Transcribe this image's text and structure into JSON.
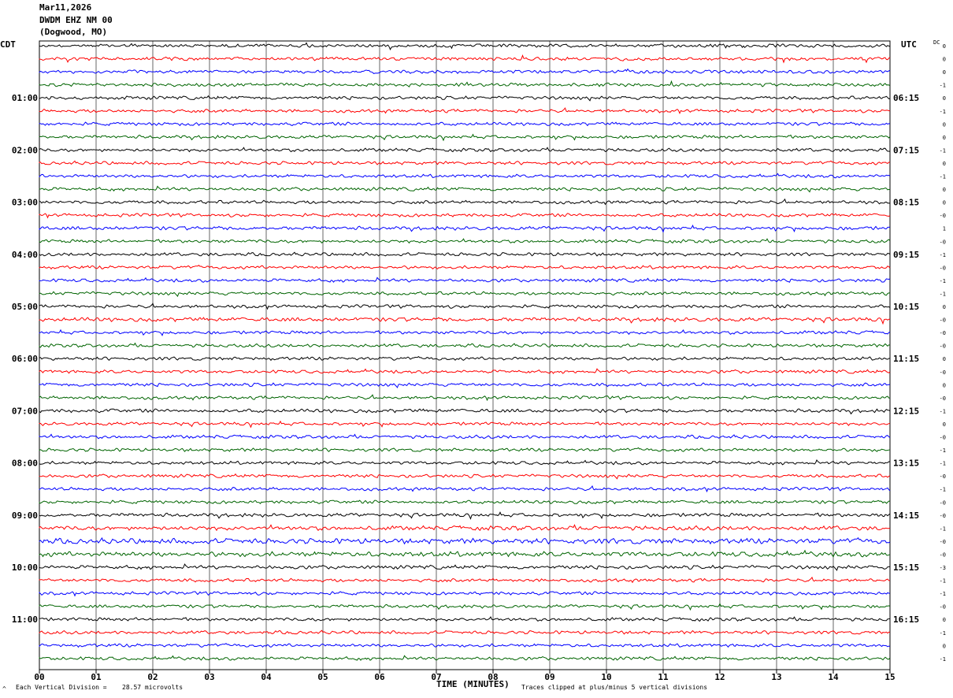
{
  "header": {
    "date": "Mar11,2026",
    "station": "DWDM EHZ NM 00",
    "location": "(Dogwood, MO)"
  },
  "left_tz": "CDT",
  "right_tz": "UTC",
  "dc_label": "DC",
  "footer": {
    "scale_label": "Each Vertical Division =",
    "scale_value": "28.57 microvolts",
    "xlabel": "TIME (MINUTES)",
    "clip_note": "Traces clipped at plus/minus 5 vertical divisions",
    "corner_mark": "^"
  },
  "colors": {
    "cycle": [
      "#000000",
      "#ff0000",
      "#0000ff",
      "#006400"
    ],
    "grid": "#000000"
  },
  "chart_data": {
    "type": "line",
    "title": "",
    "xlabel": "TIME (MINUTES)",
    "ylabel": "",
    "xlim": [
      0,
      15
    ],
    "x_ticks": [
      "00",
      "01",
      "02",
      "03",
      "04",
      "05",
      "06",
      "07",
      "08",
      "09",
      "10",
      "11",
      "12",
      "13",
      "14",
      "15"
    ],
    "rows": 48,
    "rows_per_hour": 4,
    "left_hour_labels": [
      "01:00",
      "02:00",
      "03:00",
      "04:00",
      "05:00",
      "06:00",
      "07:00",
      "08:00",
      "09:00",
      "10:00",
      "11:00"
    ],
    "right_hour_labels": [
      "06:15",
      "07:15",
      "08:15",
      "09:15",
      "10:15",
      "11:15",
      "12:15",
      "13:15",
      "14:15",
      "15:15",
      "16:15"
    ],
    "dc_offsets": [
      "0",
      "0",
      "0",
      "-1",
      "0",
      "-1",
      "0",
      "0",
      "-1",
      "0",
      "-1",
      "0",
      "0",
      "-0",
      "1",
      "-0",
      "-1",
      "-0",
      "-1",
      "-1",
      "0",
      "-0",
      "-0",
      "-0",
      "0",
      "-0",
      "0",
      "-0",
      "-1",
      "0",
      "-0",
      "-1",
      "-1",
      "-0",
      "-1",
      "-0",
      "-0",
      "-1",
      "-0",
      "-0",
      "-3",
      "-1",
      "-1",
      "-0",
      "0",
      "-1",
      "0",
      "-1"
    ],
    "trace_amplitude": [
      1.0,
      1.0,
      1.0,
      1.0,
      1.0,
      1.0,
      1.0,
      1.0,
      1.0,
      1.0,
      1.0,
      1.0,
      1.0,
      1.0,
      1.1,
      1.0,
      1.0,
      1.0,
      1.0,
      1.0,
      1.0,
      1.2,
      1.0,
      1.0,
      1.0,
      1.0,
      1.0,
      1.0,
      1.1,
      1.0,
      1.0,
      1.0,
      1.0,
      1.0,
      1.0,
      1.0,
      1.1,
      1.3,
      1.6,
      1.5,
      1.1,
      1.0,
      1.0,
      1.0,
      1.0,
      1.0,
      1.0,
      1.0
    ]
  }
}
